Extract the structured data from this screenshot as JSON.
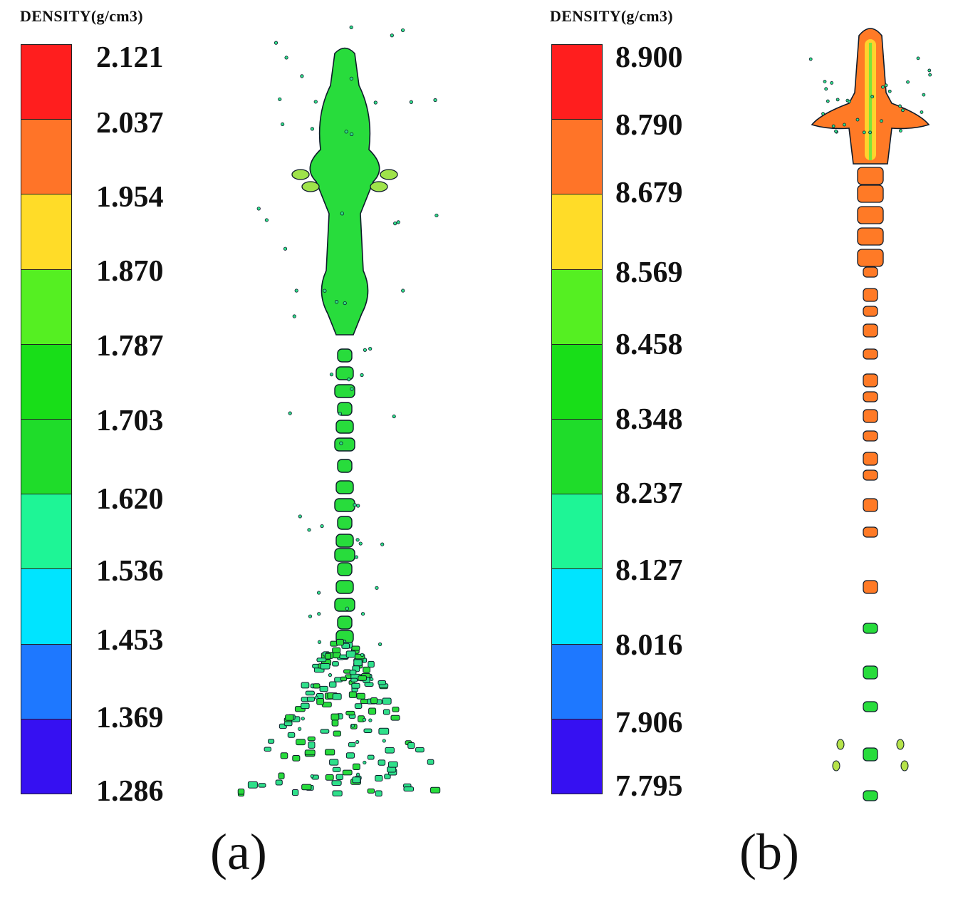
{
  "panels": [
    {
      "id": "a",
      "legend_title": "DENSITY(g/cm3)",
      "ticks": [
        "2.121",
        "2.037",
        "1.954",
        "1.870",
        "1.787",
        "1.703",
        "1.620",
        "1.536",
        "1.453",
        "1.369",
        "1.286"
      ],
      "caption": "(a)"
    },
    {
      "id": "b",
      "legend_title": "DENSITY(g/cm3)",
      "ticks": [
        "8.900",
        "8.790",
        "8.679",
        "8.569",
        "8.458",
        "8.348",
        "8.237",
        "8.127",
        "8.016",
        "7.906",
        "7.795"
      ],
      "caption": "(b)"
    }
  ],
  "colors": {
    "bands_top_to_bottom": [
      "#ff1e1e",
      "#ff7428",
      "#ffdc28",
      "#55ef22",
      "#18de18",
      "#1fdc2a",
      "#1ef596",
      "#00e4ff",
      "#1e78ff",
      "#3610f2"
    ],
    "outline": "#0d1a2a",
    "jet_a_main": "#28dc3c",
    "jet_b_main": "#ff7a26",
    "jet_b_core": "#ffd22d",
    "jet_b_edge": "#ff2d22",
    "fragment": "#2fe08a"
  }
}
